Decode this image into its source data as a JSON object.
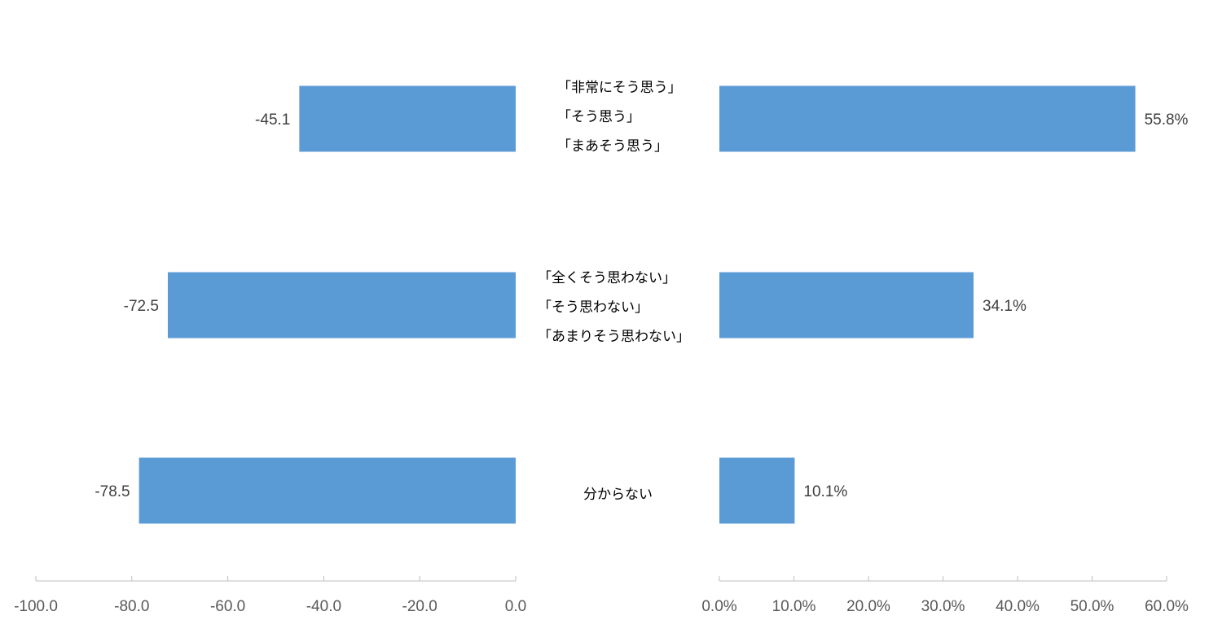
{
  "chart_data": [
    {
      "type": "bar",
      "orientation": "horizontal",
      "categories": [
        "「非常にそう思う」「そう思う」「まあそう思う」",
        "「全くそう思わない」「そう思わない」「あまりそう思わない」",
        "分からない"
      ],
      "values": [
        -45.1,
        -72.5,
        -78.5
      ],
      "data_labels": [
        "-45.1",
        "-72.5",
        "-78.5"
      ],
      "xlim": [
        -100,
        0
      ],
      "ticks": [
        -100,
        -80,
        -60,
        -40,
        -20,
        0
      ],
      "tick_labels": [
        "-100.0",
        "-80.0",
        "-60.0",
        "-40.0",
        "-20.0",
        "0.0"
      ],
      "grid": false,
      "color": "#5b9bd5"
    },
    {
      "type": "bar",
      "orientation": "horizontal",
      "categories": [
        "「非常にそう思う」「そう思う」「まあそう思う」",
        "「全くそう思わない」「そう思わない」「あまりそう思わない」",
        "分からない"
      ],
      "values": [
        55.8,
        34.1,
        10.1
      ],
      "data_labels": [
        "55.8%",
        "34.1%",
        "10.1%"
      ],
      "xlim": [
        0,
        60
      ],
      "ticks": [
        0,
        10,
        20,
        30,
        40,
        50,
        60
      ],
      "tick_labels": [
        "0.0%",
        "10.0%",
        "20.0%",
        "30.0%",
        "40.0%",
        "50.0%",
        "60.0%"
      ],
      "grid": false,
      "color": "#5b9bd5"
    }
  ],
  "category_labels": [
    {
      "lines": [
        "「非常にそう思う」",
        "「そう思う」",
        "「まあそう思う」"
      ]
    },
    {
      "lines": [
        "「全くそう思わない」",
        "「そう思わない」",
        "「あまりそう思わない」"
      ]
    },
    {
      "lines": [
        "分からない"
      ]
    }
  ],
  "colors": {
    "bar": "#5b9bd5",
    "axis": "#bfbfbf",
    "axis_text": "#595959",
    "data_label_text": "#404040"
  }
}
